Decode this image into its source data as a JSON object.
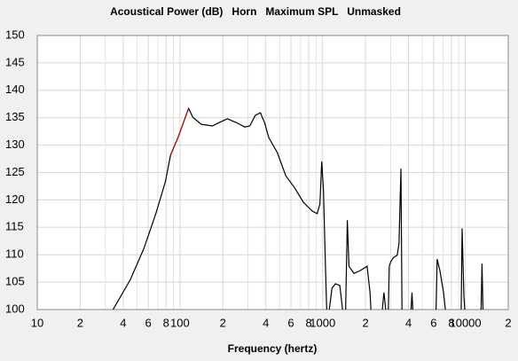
{
  "chart_data": {
    "type": "line",
    "title": "Acoustical Power (dB)   Horn   Maximum SPL   Unmasked",
    "x_label": "Frequency (hertz)",
    "log_x": true,
    "grid": true,
    "xlim": [
      10,
      20000
    ],
    "xticks": [
      10,
      {
        "value": 20,
        "label": "2"
      },
      {
        "value": 40,
        "label": "4"
      },
      {
        "value": 60,
        "label": "6"
      },
      {
        "value": 80,
        "label": "8"
      },
      100,
      {
        "value": 200,
        "label": "2"
      },
      {
        "value": 400,
        "label": "4"
      },
      {
        "value": 600,
        "label": "6"
      },
      {
        "value": 800,
        "label": "8"
      },
      1000,
      {
        "value": 2000,
        "label": "2"
      },
      {
        "value": 4000,
        "label": "4"
      },
      {
        "value": 6000,
        "label": "6"
      },
      {
        "value": 8000,
        "label": "8"
      },
      10000,
      {
        "value": 20000,
        "label": "2"
      }
    ],
    "x_minor_ticks": [
      30,
      50,
      70,
      90,
      300,
      500,
      700,
      900,
      3000,
      5000,
      7000,
      9000
    ],
    "ylim": [
      100,
      150
    ],
    "yticks": [
      100,
      105,
      110,
      115,
      120,
      125,
      130,
      135,
      140,
      145,
      150
    ],
    "x": [
      34,
      45,
      56,
      68,
      79,
      86,
      97,
      115,
      123,
      141,
      169,
      195,
      215,
      249,
      285,
      309,
      337,
      366,
      392,
      419,
      482,
      552,
      637,
      732,
      843,
      916,
      958,
      986,
      1014,
      1043,
      1068,
      1090,
      1114,
      1163,
      1230,
      1320,
      1380,
      1420,
      1450,
      1490,
      1530,
      1660,
      1830,
      2050,
      2150,
      2180,
      2400,
      2620,
      2690,
      2770,
      2830,
      2890,
      2930,
      3000,
      3140,
      3330,
      3430,
      3540,
      3600,
      3900,
      4170,
      4230,
      4290,
      5000,
      6240,
      6350,
      6640,
      7040,
      7250,
      8000,
      9360,
      9500,
      9780,
      9920,
      11000,
      12900,
      13100,
      13300
    ],
    "series": [
      {
        "color": "#000000",
        "values": [
          100,
          105.5,
          111.2,
          117.6,
          123.3,
          128.2,
          131.4,
          136.7,
          135.1,
          133.8,
          133.5,
          134.3,
          134.8,
          134.1,
          133.3,
          133.5,
          135.4,
          135.9,
          134.1,
          131.4,
          128.6,
          124.4,
          122.2,
          119.6,
          118,
          117.5,
          119.3,
          127,
          121.7,
          109.5,
          100,
          null,
          100,
          103.9,
          104.7,
          104.4,
          100,
          null,
          100,
          116.3,
          107.9,
          106.6,
          107.1,
          107.9,
          103.1,
          100,
          null,
          100,
          103.1,
          100,
          null,
          100,
          107.9,
          108.7,
          109.5,
          109.9,
          112,
          125.7,
          100,
          null,
          100,
          103.1,
          100,
          null,
          100,
          109.2,
          107.1,
          103.1,
          100,
          null,
          100,
          114.8,
          102.3,
          100,
          null,
          100,
          108.4,
          100
        ]
      },
      {
        "color": "#cc0000",
        "values": [
          null,
          null,
          null,
          null,
          null,
          128.2,
          131.4,
          136.7,
          null,
          null,
          null,
          null,
          null,
          null,
          null,
          null,
          null,
          null,
          null,
          null,
          null,
          null,
          null,
          null,
          null,
          null,
          null,
          null,
          null,
          null,
          null,
          null,
          null,
          null,
          null,
          null,
          null,
          null,
          null,
          null,
          null,
          null,
          null,
          null,
          null,
          null,
          null,
          null,
          null,
          null,
          null,
          null,
          null,
          null,
          null,
          null,
          null,
          null,
          null,
          null,
          null,
          null,
          null,
          null,
          null,
          null,
          null,
          null,
          null,
          null,
          null,
          null,
          null,
          null,
          null,
          null,
          null,
          null
        ]
      }
    ]
  }
}
